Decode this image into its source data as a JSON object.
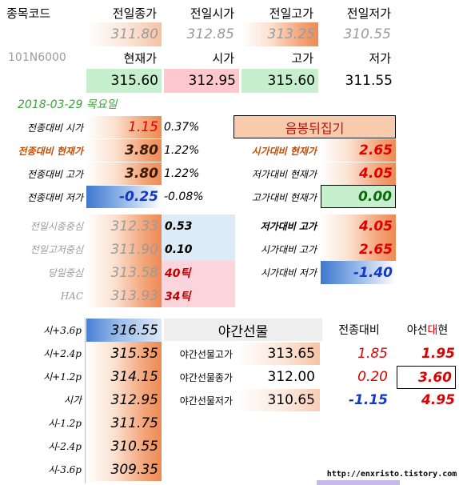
{
  "top": {
    "code_label": "종목코드",
    "code_value": "101N6000",
    "prev_headers": [
      "전일종가",
      "전일시가",
      "전일고가",
      "전일저가"
    ],
    "prev_values": [
      "311.80",
      "312.85",
      "313.25",
      "310.55"
    ],
    "cur_headers": [
      "현재가",
      "시가",
      "고가",
      "저가"
    ],
    "cur_values": [
      "315.60",
      "312.95",
      "315.60",
      "311.55"
    ]
  },
  "date": "2018-03-29 목요일",
  "compare_left": [
    {
      "label": "전종대비 시가",
      "value": "1.15",
      "pct": "0.37%"
    },
    {
      "label": "전종대비 현재가",
      "value": "3.80",
      "pct": "1.22%"
    },
    {
      "label": "전종대비 고가",
      "value": "3.80",
      "pct": "1.22%"
    },
    {
      "label": "전종대비 저가",
      "value": "-0.25",
      "pct": "-0.08%"
    }
  ],
  "candle_label": "음봉뒤집기",
  "compare_right": [
    {
      "label": "시가대비 현재가",
      "value": "2.65"
    },
    {
      "label": "저가대비 현재가",
      "value": "4.05"
    },
    {
      "label": "고가대비 현재가",
      "value": "0.00"
    }
  ],
  "centers": [
    {
      "label": "전일시종중심",
      "value": "312.33",
      "extra": "0.53"
    },
    {
      "label": "전일고저중심",
      "value": "311.90",
      "extra": "0.10"
    },
    {
      "label": "당일중심",
      "value": "313.58",
      "extra": "40틱"
    },
    {
      "label": "HAC",
      "value": "313.93",
      "extra": "34틱"
    }
  ],
  "ranges_right": [
    {
      "label": "저가대비 고가",
      "value": "4.05"
    },
    {
      "label": "시가대비 고가",
      "value": "2.65"
    },
    {
      "label": "시가대비 저가",
      "value": "-1.40"
    }
  ],
  "pivots": [
    {
      "label": "시+3.6p",
      "value": "316.55"
    },
    {
      "label": "시+2.4p",
      "value": "315.35"
    },
    {
      "label": "시+1.2p",
      "value": "314.15"
    },
    {
      "label": "시가",
      "value": "312.95"
    },
    {
      "label": "시-1.2p",
      "value": "311.75"
    },
    {
      "label": "시-2.4p",
      "value": "310.55"
    },
    {
      "label": "시-3.6p",
      "value": "309.35"
    }
  ],
  "night": {
    "title": "야간선물",
    "col_prev": "전종대비",
    "col_vs_prefix": "야선",
    "col_vs_highlight": "대",
    "col_vs_suffix": "현",
    "rows": [
      {
        "label": "야간선물고가",
        "value": "313.65",
        "diff": "1.85",
        "vs": "1.95"
      },
      {
        "label": "야간선물종가",
        "value": "312.00",
        "diff": "0.20",
        "vs": "3.60"
      },
      {
        "label": "야간선물저가",
        "value": "310.65",
        "diff": "-1.15",
        "vs": "4.95"
      }
    ]
  },
  "watermark": "http://enxristo.tistory.com"
}
